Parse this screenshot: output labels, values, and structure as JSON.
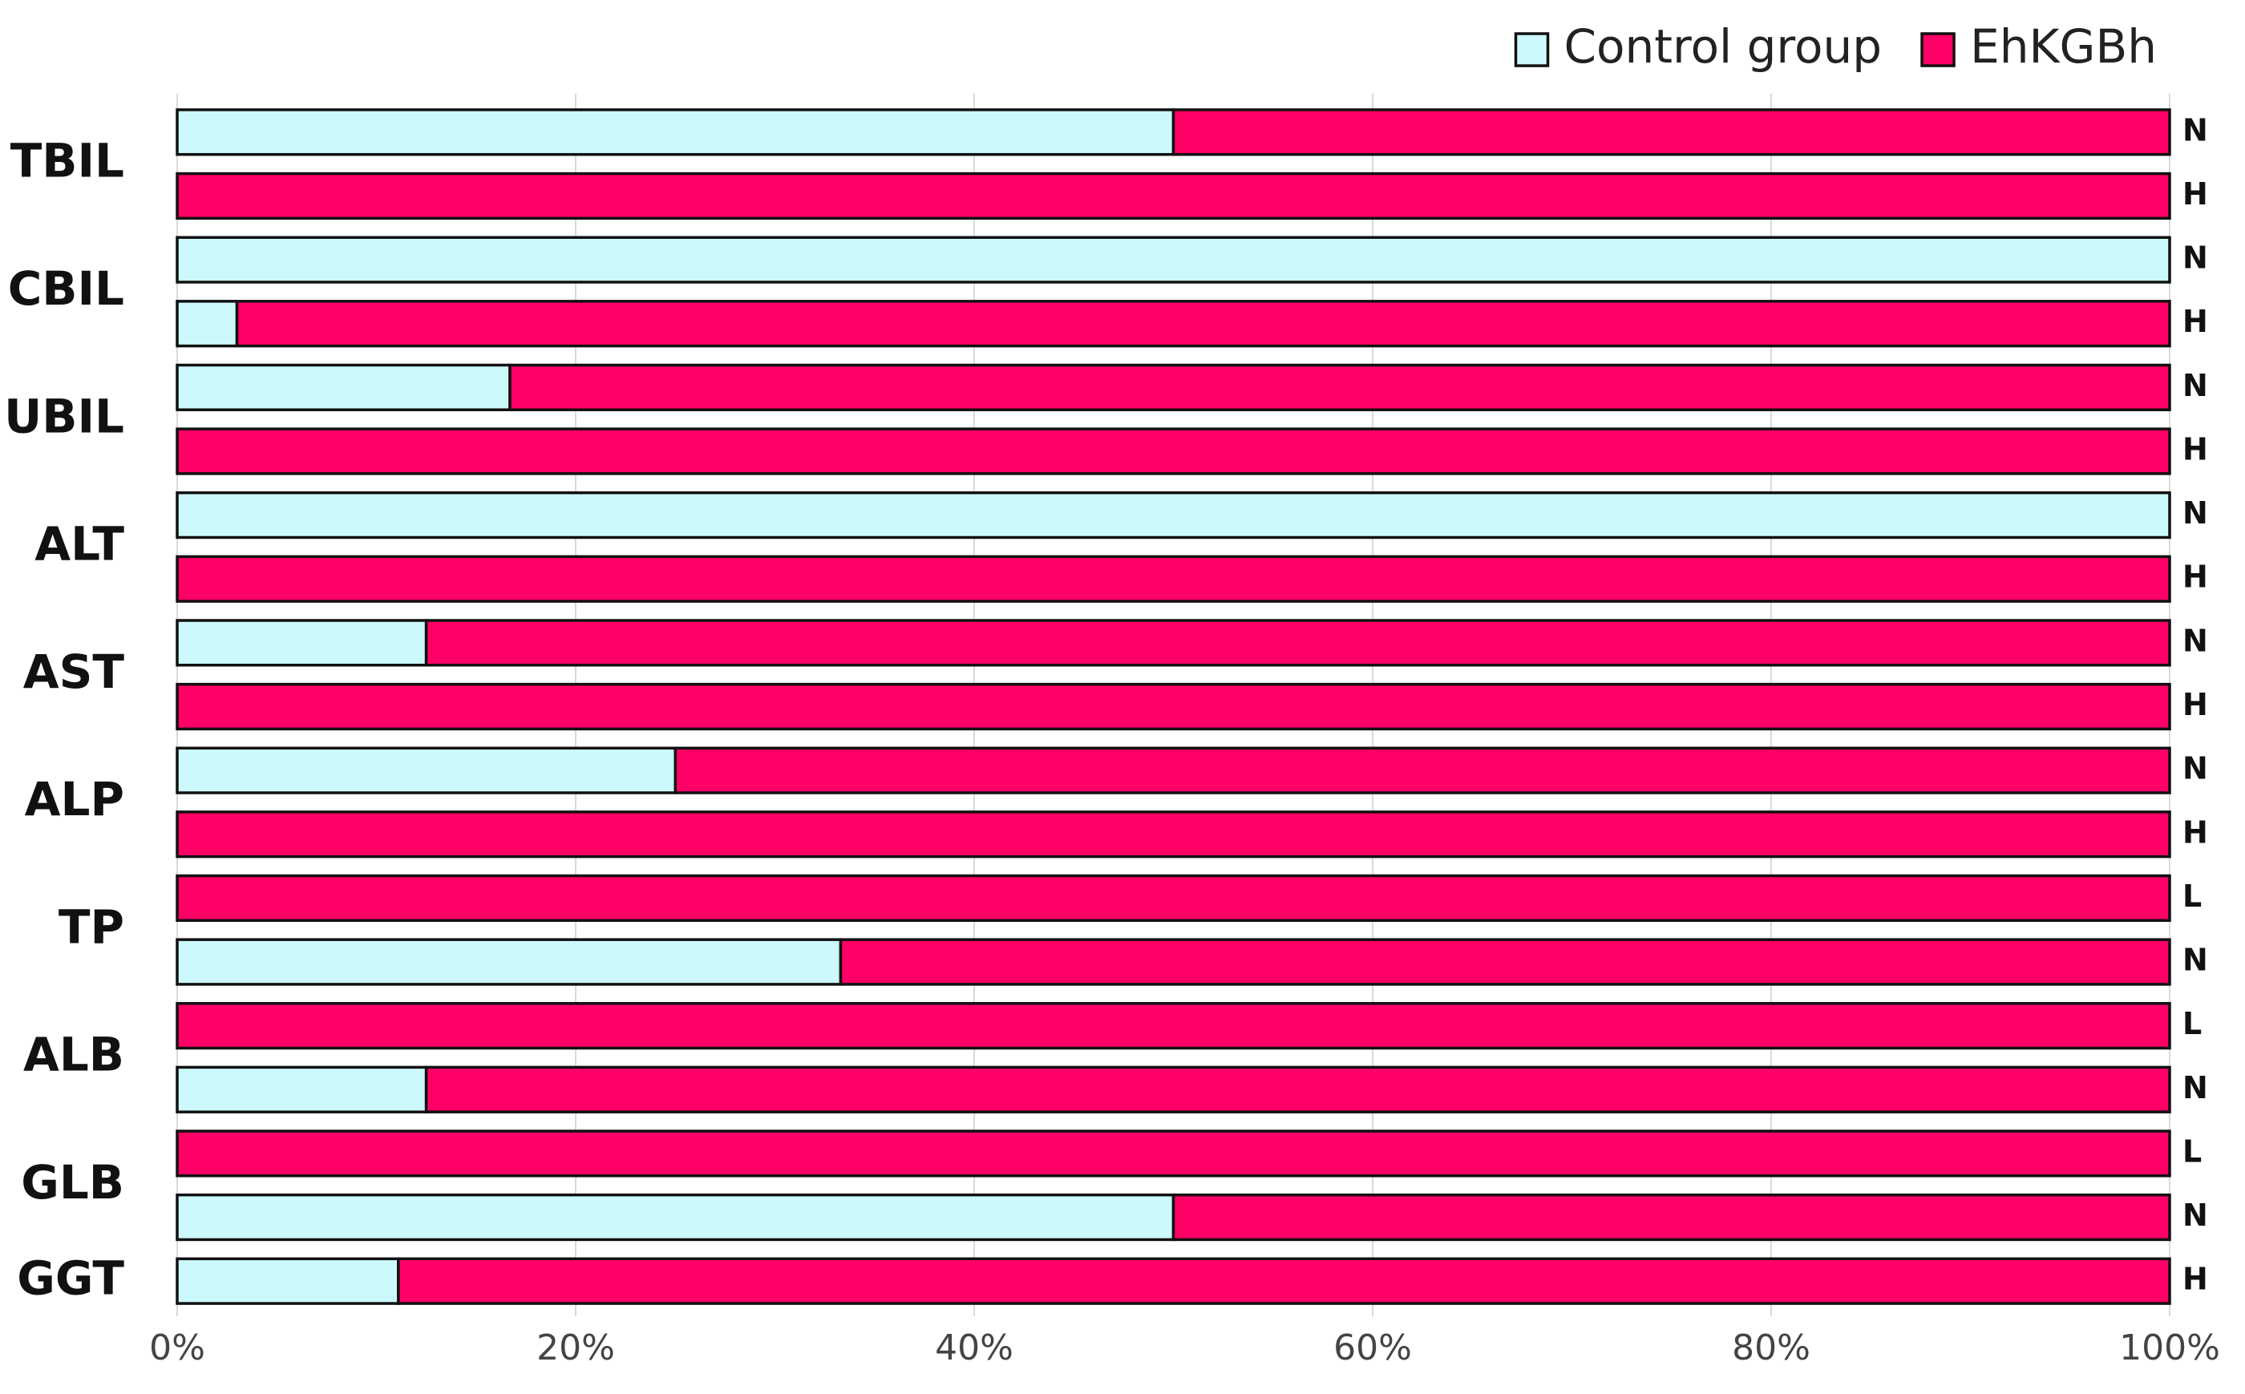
{
  "chart_data": {
    "type": "stacked-bar-horizontal-percent",
    "categories": [
      "N",
      "H",
      "N",
      "H",
      "N",
      "H",
      "N",
      "H",
      "N",
      "H",
      "N",
      "H",
      "L",
      "N",
      "L",
      "N",
      "L",
      "N",
      "H"
    ],
    "groups": [
      "TBIL",
      null,
      "CBIL",
      null,
      "UBIL",
      null,
      "ALT",
      null,
      "AST",
      null,
      "ALP",
      null,
      "TP",
      null,
      "ALB",
      null,
      "GLB",
      null,
      "GGT"
    ],
    "series": [
      {
        "name": "Control group",
        "color": "#ccfafc",
        "values": [
          50,
          0,
          100,
          3,
          16.7,
          0,
          100,
          0,
          12.5,
          0,
          25,
          0,
          0,
          33.3,
          0,
          12.5,
          0,
          50,
          11.1
        ]
      },
      {
        "name": "EhKGBh",
        "color": "#ff0066",
        "values": [
          50,
          100,
          0,
          97,
          83.3,
          100,
          0,
          100,
          87.5,
          100,
          75,
          100,
          100,
          66.7,
          100,
          87.5,
          100,
          50,
          88.9
        ]
      }
    ],
    "xlim": [
      0,
      100
    ],
    "xticks": [
      {
        "value": 0,
        "label": "0%"
      },
      {
        "value": 20,
        "label": "20%"
      },
      {
        "value": 40,
        "label": "40%"
      },
      {
        "value": 60,
        "label": "60%"
      },
      {
        "value": 80,
        "label": "80%"
      },
      {
        "value": 100,
        "label": "100%"
      }
    ],
    "grid": true,
    "legend": "top-right"
  }
}
